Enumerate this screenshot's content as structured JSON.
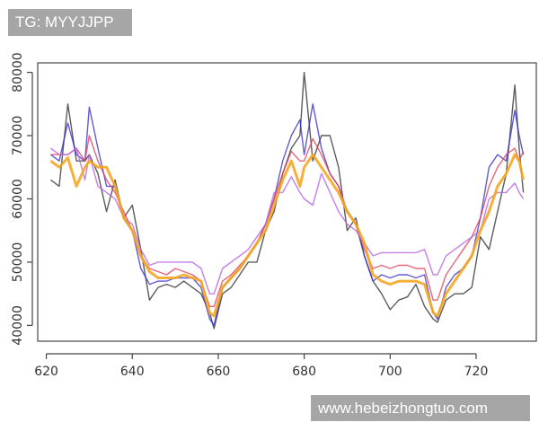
{
  "overlay": {
    "top_left_label": "TG: MYYJJPP",
    "bottom_right_label": "www.hebeizhongtuo.com"
  },
  "chart_data": {
    "type": "line",
    "title": "",
    "xlabel": "",
    "ylabel": "",
    "xlim": [
      618,
      734
    ],
    "ylim": [
      37500,
      81500
    ],
    "xticks": [
      620,
      640,
      660,
      680,
      700,
      720
    ],
    "yticks": [
      40000,
      50000,
      60000,
      70000,
      80000
    ],
    "grid": false,
    "legend": "none",
    "x": [
      621,
      623,
      625,
      627,
      629,
      630,
      632,
      634,
      636,
      638,
      640,
      642,
      644,
      646,
      648,
      650,
      652,
      654,
      656,
      658,
      659,
      661,
      663,
      665,
      667,
      669,
      671,
      673,
      675,
      677,
      679,
      680,
      682,
      684,
      686,
      688,
      690,
      692,
      694,
      696,
      698,
      700,
      702,
      704,
      706,
      708,
      710,
      711,
      713,
      715,
      717,
      719,
      721,
      723,
      725,
      727,
      729,
      730,
      731
    ],
    "series": [
      {
        "color": "#333333",
        "values": [
          63000,
          62000,
          75000,
          66000,
          66000,
          67000,
          64000,
          58000,
          63000,
          57000,
          59000,
          52000,
          44000,
          46000,
          46500,
          46000,
          47000,
          46000,
          45000,
          42000,
          39500,
          45000,
          46000,
          48000,
          50000,
          50000,
          55000,
          58000,
          64000,
          68000,
          70000,
          80000,
          66000,
          70000,
          70000,
          65000,
          55000,
          57000,
          51000,
          47000,
          45000,
          42500,
          44000,
          44500,
          46500,
          43000,
          41000,
          40500,
          44000,
          45000,
          45000,
          46000,
          54000,
          52000,
          58000,
          64000,
          78000,
          68000,
          61000
        ]
      },
      {
        "color": "#3a33c9",
        "values": [
          67000,
          66000,
          72000,
          67000,
          66000,
          74500,
          68000,
          62000,
          62000,
          57000,
          55000,
          49000,
          46500,
          47000,
          47000,
          47500,
          47500,
          47500,
          46000,
          41000,
          40000,
          46000,
          47500,
          49000,
          51000,
          53000,
          56000,
          60000,
          66000,
          70000,
          72500,
          67000,
          75000,
          68000,
          64000,
          62000,
          58000,
          56000,
          51000,
          47000,
          48000,
          47500,
          48000,
          48000,
          47500,
          48000,
          42000,
          41000,
          46000,
          48000,
          49000,
          51000,
          57000,
          65000,
          67000,
          66000,
          74000,
          70000,
          67000
        ]
      },
      {
        "color": "#e0405a",
        "values": [
          67000,
          67000,
          67000,
          68000,
          66000,
          70000,
          66000,
          63000,
          61000,
          58000,
          55000,
          51000,
          49000,
          48500,
          48000,
          49000,
          48500,
          48000,
          47000,
          43000,
          43000,
          47000,
          48000,
          49500,
          51000,
          53000,
          56000,
          60000,
          64000,
          67500,
          66000,
          66000,
          69500,
          67000,
          64000,
          62000,
          58000,
          56000,
          52000,
          49000,
          49500,
          49000,
          49500,
          49500,
          49000,
          49000,
          44000,
          44000,
          48000,
          50000,
          52000,
          54000,
          57000,
          62000,
          65000,
          67000,
          68000,
          66000,
          67500
        ]
      },
      {
        "color": "#b560e0",
        "values": [
          68000,
          67000,
          67000,
          68000,
          63000,
          67000,
          62000,
          61000,
          60000,
          57000,
          56000,
          52000,
          49500,
          50000,
          50000,
          50000,
          50000,
          50000,
          49000,
          45000,
          45000,
          49000,
          50000,
          51000,
          52000,
          54000,
          56000,
          61000,
          61000,
          63500,
          61000,
          60000,
          59000,
          64000,
          61000,
          58000,
          56000,
          55000,
          53000,
          51000,
          51500,
          51500,
          51500,
          51500,
          51500,
          52000,
          48000,
          48000,
          51000,
          52000,
          53000,
          54000,
          55000,
          60000,
          61000,
          61000,
          62500,
          61000,
          60000
        ]
      },
      {
        "color": "#f5a623",
        "values": [
          66000,
          65000,
          66500,
          62000,
          65000,
          66000,
          65000,
          65000,
          62000,
          57000,
          55000,
          51000,
          48500,
          47500,
          47500,
          47500,
          48000,
          47500,
          47000,
          42000,
          41500,
          46000,
          47500,
          49000,
          51000,
          53000,
          55000,
          59000,
          63000,
          66000,
          62000,
          65000,
          67000,
          65000,
          63000,
          61000,
          58000,
          56000,
          53000,
          48000,
          47000,
          46500,
          47000,
          47000,
          47000,
          46500,
          42000,
          41500,
          45000,
          47000,
          49000,
          51000,
          55000,
          58000,
          62000,
          64000,
          67000,
          66000,
          63000
        ]
      }
    ]
  }
}
